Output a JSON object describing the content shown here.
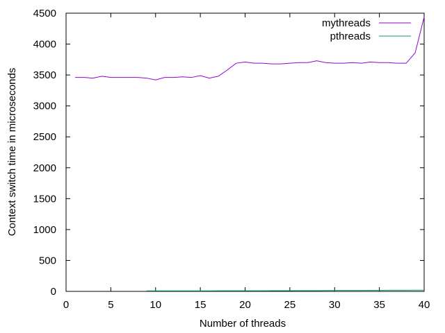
{
  "chart_data": {
    "type": "line",
    "xlabel": "Number of threads",
    "ylabel": "Context switch time in microseconds",
    "xlim": [
      0,
      40
    ],
    "ylim": [
      0,
      4500
    ],
    "xticks": [
      0,
      5,
      10,
      15,
      20,
      25,
      30,
      35,
      40
    ],
    "yticks": [
      0,
      500,
      1000,
      1500,
      2000,
      2500,
      3000,
      3500,
      4000,
      4500
    ],
    "grid": false,
    "legend_position": "top-right",
    "series": [
      {
        "name": "mythreads",
        "color": "#9400d3",
        "x": [
          1,
          2,
          3,
          4,
          5,
          6,
          7,
          8,
          9,
          10,
          11,
          12,
          13,
          14,
          15,
          16,
          17,
          18,
          19,
          20,
          21,
          22,
          23,
          24,
          25,
          26,
          27,
          28,
          29,
          30,
          31,
          32,
          33,
          34,
          35,
          36,
          37,
          38,
          39,
          40
        ],
        "values": [
          3460,
          3460,
          3450,
          3480,
          3460,
          3460,
          3460,
          3460,
          3450,
          3420,
          3460,
          3460,
          3470,
          3460,
          3490,
          3450,
          3480,
          3580,
          3690,
          3710,
          3690,
          3690,
          3680,
          3680,
          3690,
          3700,
          3700,
          3730,
          3700,
          3690,
          3690,
          3700,
          3690,
          3710,
          3700,
          3700,
          3690,
          3690,
          3860,
          4440
        ]
      },
      {
        "name": "pthreads",
        "color": "#009e73",
        "x": [
          9,
          10,
          11,
          12,
          13,
          14,
          15,
          16,
          17,
          18,
          19,
          20,
          21,
          22,
          23,
          24,
          25,
          26,
          27,
          28,
          29,
          30,
          31,
          32,
          33,
          34,
          35,
          36,
          37,
          38,
          39,
          40
        ],
        "values": [
          8,
          8,
          8,
          8,
          9,
          9,
          9,
          9,
          10,
          10,
          10,
          10,
          10,
          10,
          11,
          11,
          11,
          12,
          12,
          12,
          14,
          15,
          15,
          16,
          16,
          17,
          17,
          18,
          18,
          18,
          19,
          19
        ]
      }
    ]
  }
}
